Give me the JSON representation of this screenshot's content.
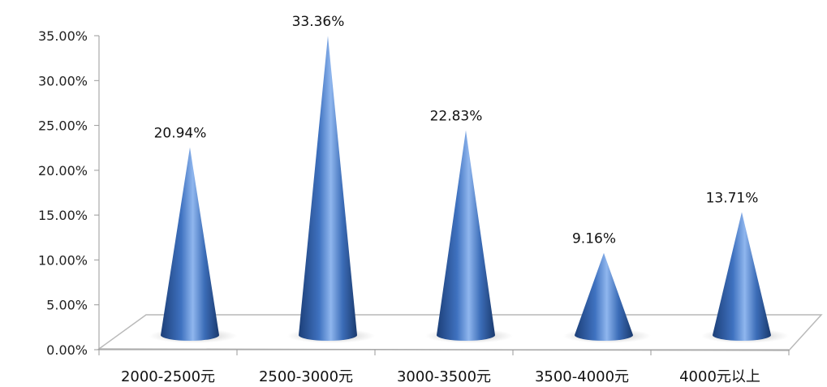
{
  "chart_data": {
    "type": "bar",
    "style": "3d-cone",
    "title": "",
    "xlabel": "",
    "ylabel": "",
    "categories": [
      "2000-2500元",
      "2500-3000元",
      "3000-3500元",
      "3500-4000元",
      "4000元以上"
    ],
    "values": [
      20.94,
      33.36,
      22.83,
      9.16,
      13.71
    ],
    "data_labels": [
      "20.94%",
      "33.36%",
      "22.83%",
      "9.16%",
      "13.71%"
    ],
    "ylim": [
      0,
      35
    ],
    "y_ticks": [
      "0.00%",
      "5.00%",
      "10.00%",
      "15.00%",
      "20.00%",
      "25.00%",
      "30.00%",
      "35.00%"
    ],
    "grid": false,
    "legend": "none",
    "colors": {
      "cone_dark": "#1c3f78",
      "cone_mid": "#3f72c0",
      "cone_light": "#8fb6ee",
      "floor_line": "#b9b9b9",
      "axis": "#9a9a9a"
    }
  }
}
